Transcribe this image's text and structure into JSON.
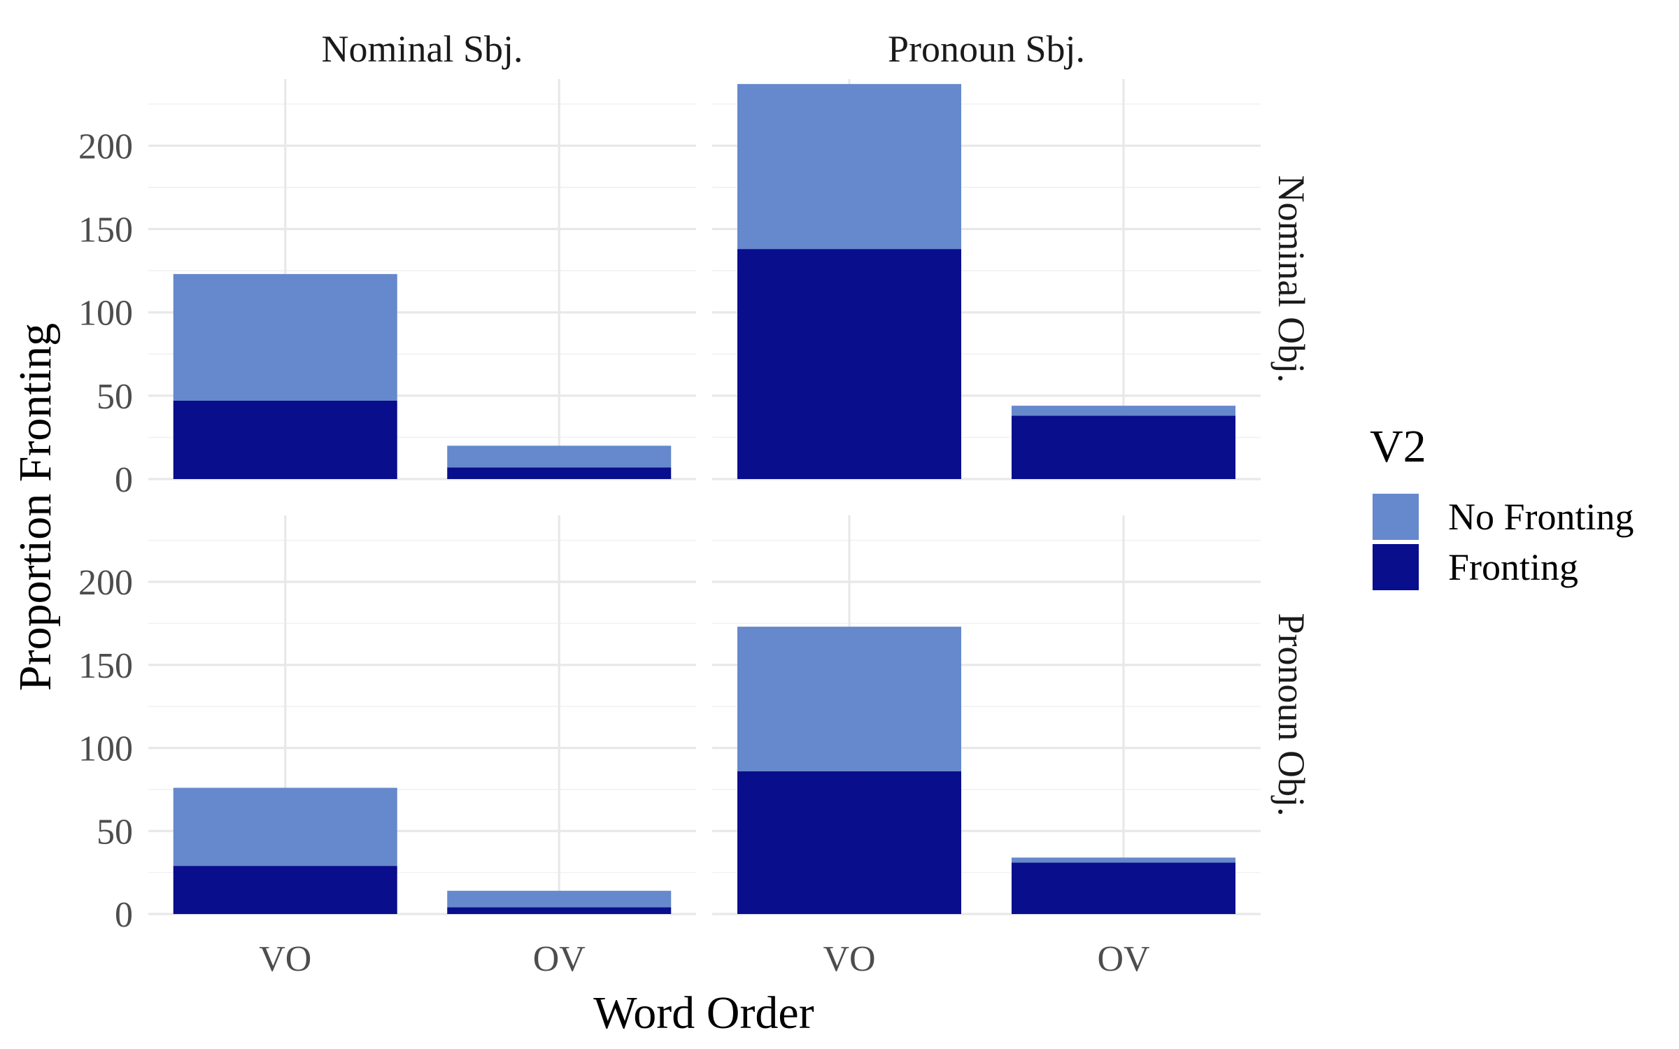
{
  "chart_data": {
    "type": "bar",
    "stacked": true,
    "faceted": true,
    "xlabel": "Word Order",
    "ylabel": "Proportion Fronting",
    "ylim": [
      0,
      240
    ],
    "yticks": [
      0,
      50,
      100,
      150,
      200
    ],
    "categories": [
      "VO",
      "OV"
    ],
    "column_facets": [
      "Nominal Sbj.",
      "Pronoun Sbj."
    ],
    "row_facets": [
      "Nominal Obj.",
      "Pronoun Obj."
    ],
    "legend": {
      "title": "V2",
      "placement": "right",
      "entries": [
        {
          "name": "No Fronting",
          "color": "#6688cc"
        },
        {
          "name": "Fronting",
          "color": "#080e8c"
        }
      ]
    },
    "grid": true,
    "panels": [
      {
        "column": "Nominal Sbj.",
        "row": "Nominal Obj.",
        "series": [
          {
            "name": "Fronting",
            "values": [
              47,
              7
            ]
          },
          {
            "name": "No Fronting",
            "values": [
              76,
              13
            ]
          }
        ]
      },
      {
        "column": "Pronoun Sbj.",
        "row": "Nominal Obj.",
        "series": [
          {
            "name": "Fronting",
            "values": [
              138,
              38
            ]
          },
          {
            "name": "No Fronting",
            "values": [
              99,
              6
            ]
          }
        ]
      },
      {
        "column": "Nominal Sbj.",
        "row": "Pronoun Obj.",
        "series": [
          {
            "name": "Fronting",
            "values": [
              29,
              4
            ]
          },
          {
            "name": "No Fronting",
            "values": [
              47,
              10
            ]
          }
        ]
      },
      {
        "column": "Pronoun Sbj.",
        "row": "Pronoun Obj.",
        "series": [
          {
            "name": "Fronting",
            "values": [
              86,
              31
            ]
          },
          {
            "name": "No Fronting",
            "values": [
              87,
              3
            ]
          }
        ]
      }
    ]
  }
}
